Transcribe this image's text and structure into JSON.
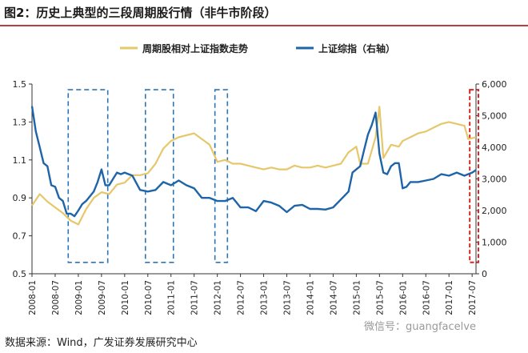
{
  "title": "图2：历史上典型的三段周期股行情（非牛市阶段）",
  "source": "数据来源：Wind，广发证券发展研究中心",
  "watermark": "微信号：guangfacelve",
  "colors": {
    "relative": "#e6c76b",
    "index": "#1e64a8",
    "box_blue": "#2e75b6",
    "box_red": "#d62728"
  },
  "chart_data": {
    "type": "line",
    "title": "",
    "legend": [
      "周期股相对上证指数走势",
      "上证综指（右轴）"
    ],
    "legend_position": "top",
    "grid": false,
    "y_left": {
      "ticks": [
        "0.5",
        "0.7",
        "0.9",
        "1.1",
        "1.3",
        "1.5"
      ],
      "lim": [
        0.5,
        1.5
      ]
    },
    "y_right": {
      "ticks": [
        "0",
        "1,000",
        "2,000",
        "3,000",
        "4,000",
        "5,000",
        "6,000"
      ],
      "lim": [
        0,
        6000
      ]
    },
    "x_ticks": [
      "2008-01",
      "2008-07",
      "2009-01",
      "2009-07",
      "2010-01",
      "2010-07",
      "2011-01",
      "2011-07",
      "2012-01",
      "2012-07",
      "2013-01",
      "2013-07",
      "2014-01",
      "2014-07",
      "2015-01",
      "2015-07",
      "2016-01",
      "2016-07",
      "2017-01",
      "2017-07"
    ],
    "x_range": [
      "2008-01",
      "2017-08"
    ],
    "series": [
      {
        "name": "周期股相对上证指数走势",
        "axis": "left",
        "x": [
          "2008-01",
          "2008-03",
          "2008-05",
          "2008-07",
          "2008-09",
          "2008-11",
          "2009-01",
          "2009-03",
          "2009-05",
          "2009-07",
          "2009-09",
          "2009-11",
          "2010-01",
          "2010-03",
          "2010-05",
          "2010-07",
          "2010-09",
          "2010-11",
          "2011-01",
          "2011-03",
          "2011-05",
          "2011-07",
          "2011-09",
          "2011-11",
          "2012-01",
          "2012-03",
          "2012-05",
          "2012-07",
          "2012-09",
          "2012-11",
          "2013-01",
          "2013-03",
          "2013-05",
          "2013-07",
          "2013-09",
          "2013-11",
          "2014-01",
          "2014-03",
          "2014-05",
          "2014-07",
          "2014-09",
          "2014-11",
          "2015-01",
          "2015-02",
          "2015-04",
          "2015-06",
          "2015-07",
          "2015-08",
          "2015-10",
          "2015-12",
          "2016-01",
          "2016-03",
          "2016-05",
          "2016-07",
          "2016-09",
          "2016-11",
          "2017-01",
          "2017-03",
          "2017-05",
          "2017-06",
          "2017-08"
        ],
        "values": [
          0.86,
          0.92,
          0.88,
          0.85,
          0.82,
          0.78,
          0.76,
          0.84,
          0.9,
          0.93,
          0.92,
          0.97,
          0.98,
          1.02,
          1.02,
          1.03,
          1.08,
          1.16,
          1.2,
          1.22,
          1.23,
          1.24,
          1.21,
          1.18,
          1.09,
          1.1,
          1.08,
          1.08,
          1.07,
          1.06,
          1.05,
          1.06,
          1.05,
          1.05,
          1.07,
          1.06,
          1.06,
          1.07,
          1.06,
          1.07,
          1.08,
          1.14,
          1.17,
          1.08,
          1.08,
          1.22,
          1.38,
          1.11,
          1.18,
          1.17,
          1.2,
          1.22,
          1.24,
          1.25,
          1.27,
          1.29,
          1.3,
          1.29,
          1.28,
          1.21,
          1.22
        ]
      },
      {
        "name": "上证综指（右轴）",
        "axis": "right",
        "x": [
          "2008-01",
          "2008-02",
          "2008-03",
          "2008-04",
          "2008-05",
          "2008-06",
          "2008-07",
          "2008-08",
          "2008-09",
          "2008-10",
          "2008-11",
          "2008-12",
          "2009-01",
          "2009-02",
          "2009-03",
          "2009-04",
          "2009-05",
          "2009-06",
          "2009-07",
          "2009-08",
          "2009-09",
          "2009-10",
          "2009-11",
          "2009-12",
          "2010-01",
          "2010-03",
          "2010-05",
          "2010-07",
          "2010-09",
          "2010-11",
          "2011-01",
          "2011-03",
          "2011-05",
          "2011-07",
          "2011-09",
          "2011-11",
          "2012-01",
          "2012-03",
          "2012-05",
          "2012-07",
          "2012-09",
          "2012-11",
          "2013-01",
          "2013-03",
          "2013-05",
          "2013-07",
          "2013-09",
          "2013-11",
          "2014-01",
          "2014-03",
          "2014-05",
          "2014-07",
          "2014-09",
          "2014-11",
          "2014-12",
          "2015-01",
          "2015-02",
          "2015-03",
          "2015-04",
          "2015-05",
          "2015-06",
          "2015-07",
          "2015-08",
          "2015-09",
          "2015-10",
          "2015-11",
          "2015-12",
          "2016-01",
          "2016-02",
          "2016-03",
          "2016-05",
          "2016-07",
          "2016-09",
          "2016-11",
          "2017-01",
          "2017-03",
          "2017-05",
          "2017-07",
          "2017-08"
        ],
        "values": [
          5300,
          4500,
          4000,
          3500,
          3400,
          2800,
          2750,
          2400,
          2300,
          1900,
          1900,
          1820,
          2000,
          2200,
          2300,
          2450,
          2600,
          2900,
          3300,
          2800,
          2800,
          3000,
          3200,
          3150,
          3200,
          3100,
          2650,
          2600,
          2650,
          2900,
          2800,
          2950,
          2800,
          2700,
          2400,
          2400,
          2300,
          2300,
          2400,
          2100,
          2100,
          1980,
          2300,
          2250,
          2150,
          1950,
          2150,
          2180,
          2050,
          2050,
          2030,
          2100,
          2350,
          2600,
          3200,
          3300,
          3400,
          3900,
          4400,
          4700,
          5100,
          3800,
          3200,
          3150,
          3400,
          3500,
          3500,
          2700,
          2750,
          2900,
          2900,
          2950,
          3000,
          3150,
          3100,
          3200,
          3100,
          3200,
          3280
        ]
      }
    ],
    "annotations": [
      {
        "type": "dashed-box",
        "color": "blue",
        "from": "2008-11",
        "to": "2009-08"
      },
      {
        "type": "dashed-box",
        "color": "blue",
        "from": "2010-07",
        "to": "2011-01"
      },
      {
        "type": "dashed-box",
        "color": "blue",
        "from": "2012-01",
        "to": "2012-03"
      },
      {
        "type": "dashed-box",
        "color": "red",
        "from": "2017-07",
        "to": "2017-08"
      }
    ]
  }
}
